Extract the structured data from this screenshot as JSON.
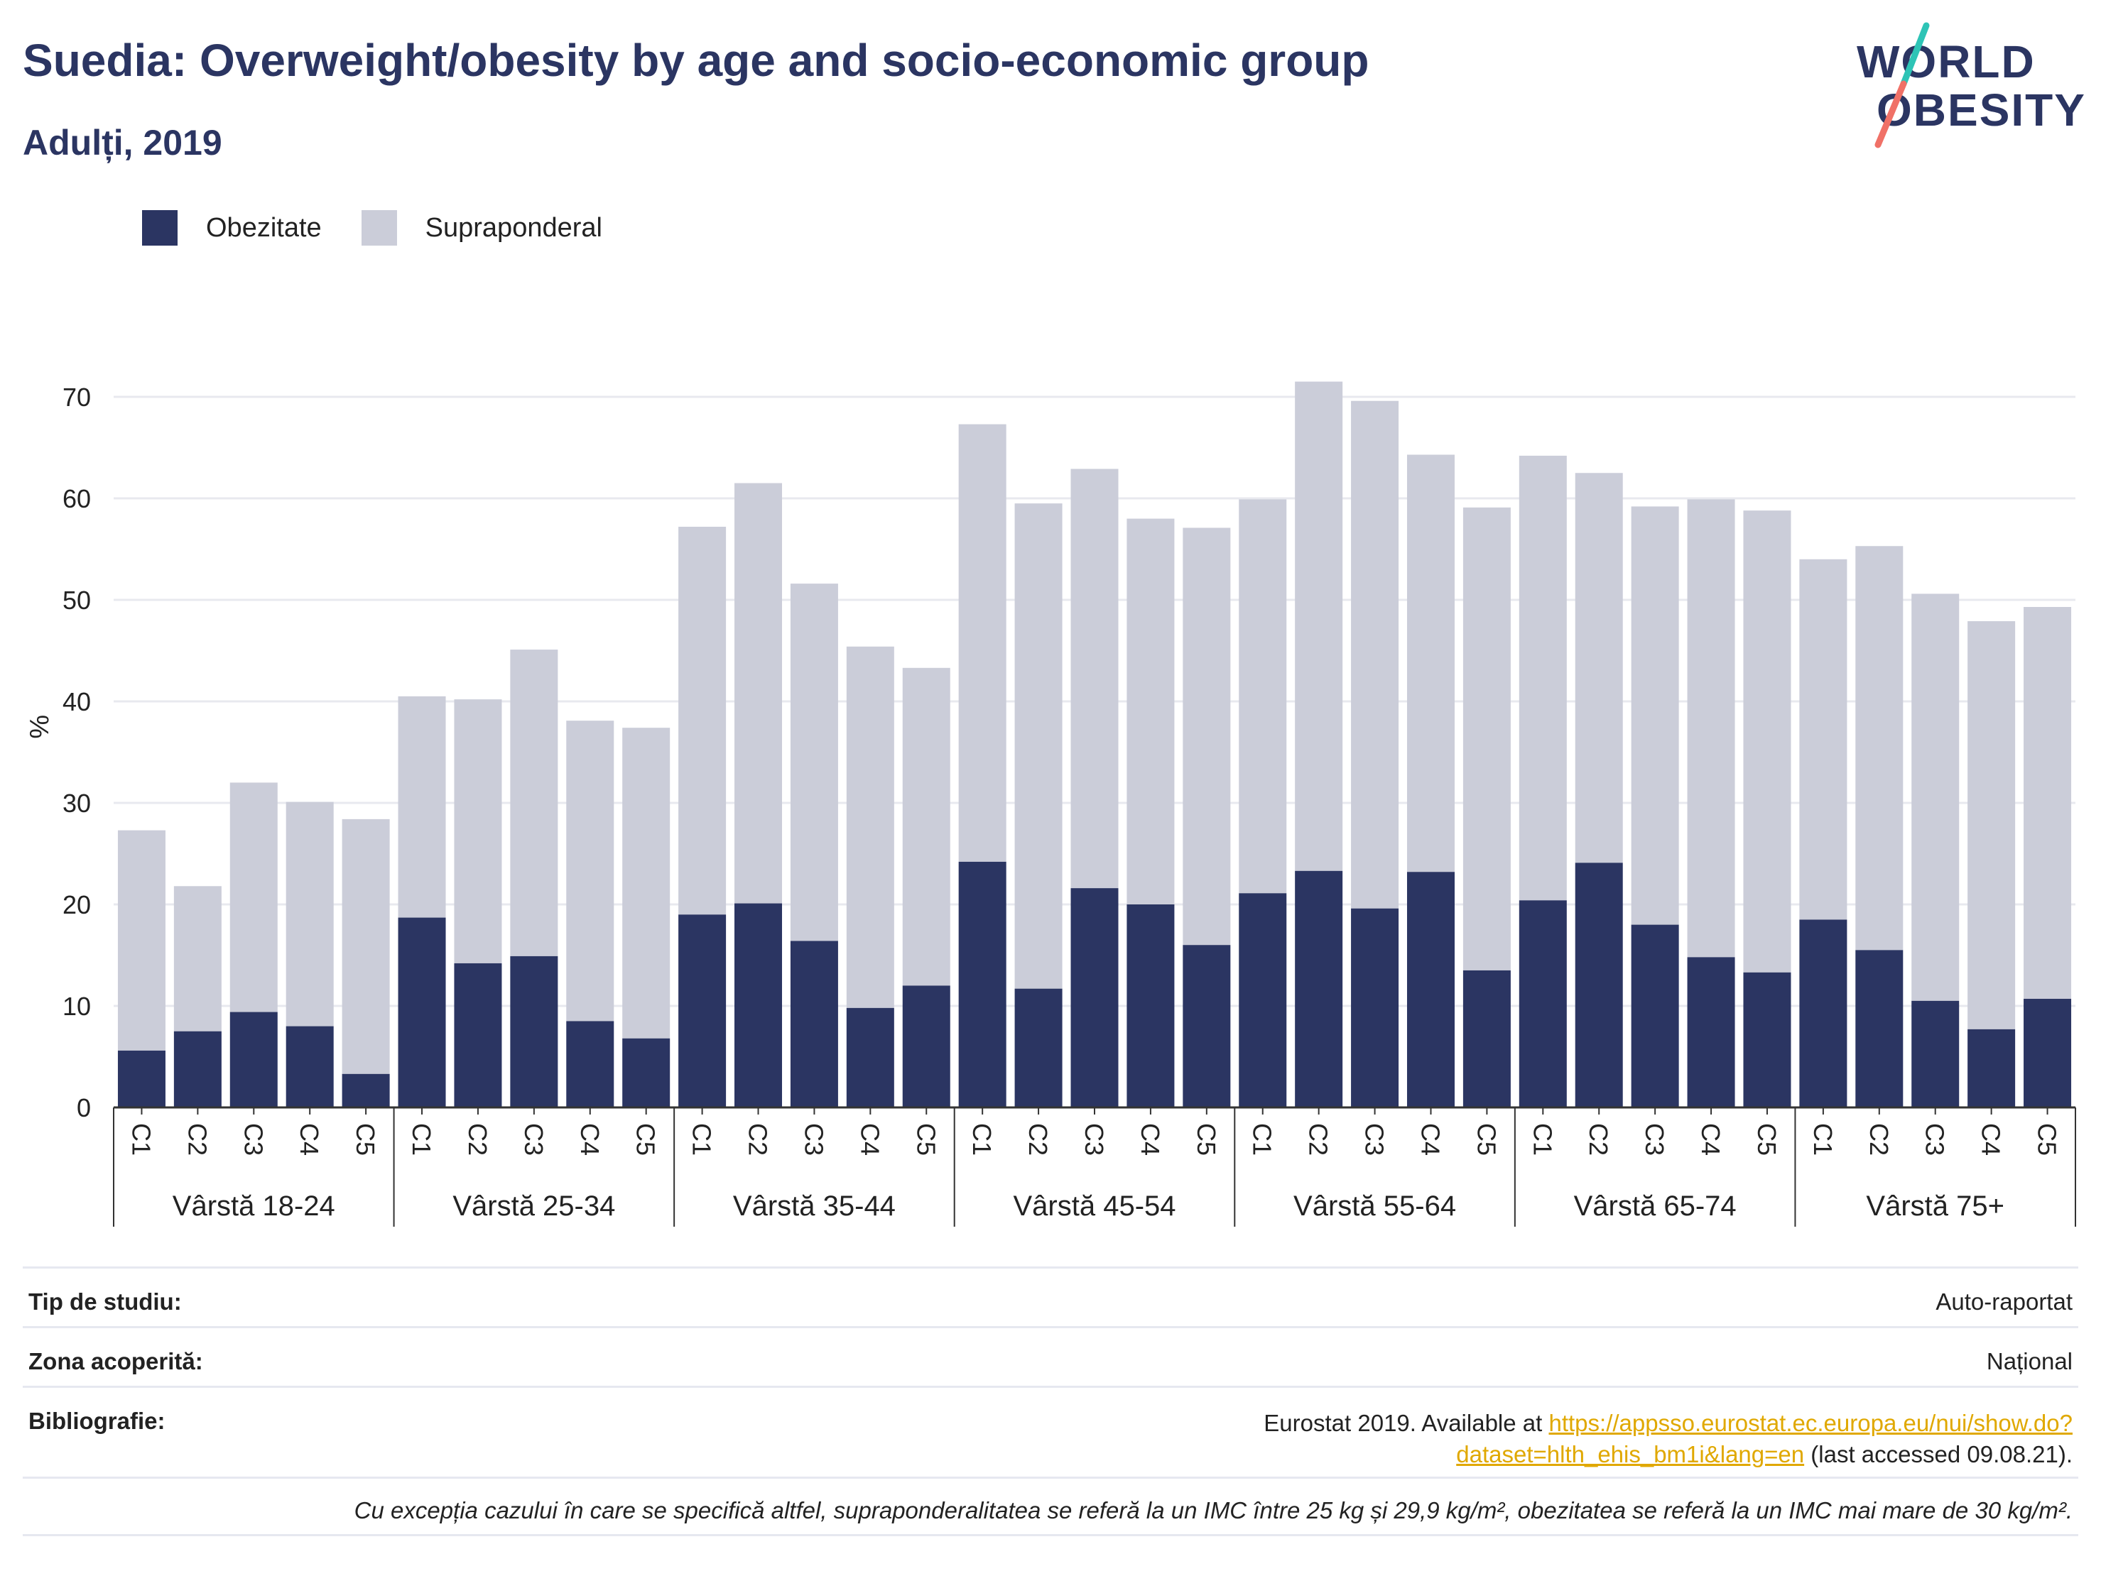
{
  "title": "Suedia: Overweight/obesity by age and socio-economic group",
  "subtitle": "Adulți, 2019",
  "logo": {
    "line1": "WORLD",
    "line2": "OBESITY",
    "colors": {
      "navy": "#2b3562",
      "teal": "#2ec4b6",
      "coral": "#f07167"
    }
  },
  "legend": [
    {
      "label": "Obezitate",
      "color": "#2b3562"
    },
    {
      "label": "Supraponderal",
      "color": "#cbcdd9"
    }
  ],
  "chart_data": {
    "type": "bar",
    "stacked": true,
    "ylabel": "%",
    "ylim": [
      0,
      75
    ],
    "yticks": [
      0,
      10,
      20,
      30,
      40,
      50,
      60,
      70
    ],
    "grid": true,
    "legend_position": "top-left",
    "groups": [
      {
        "label": "Vârstă 18-24",
        "categories": [
          "C1",
          "C2",
          "C3",
          "C4",
          "C5"
        ],
        "obesity": [
          5.6,
          7.5,
          9.4,
          8.0,
          3.3
        ],
        "total": [
          27.3,
          21.8,
          32.0,
          30.1,
          28.4
        ]
      },
      {
        "label": "Vârstă 25-34",
        "categories": [
          "C1",
          "C2",
          "C3",
          "C4",
          "C5"
        ],
        "obesity": [
          18.7,
          14.2,
          14.9,
          8.5,
          6.8
        ],
        "total": [
          40.5,
          40.2,
          45.1,
          38.1,
          37.4
        ]
      },
      {
        "label": "Vârstă 35-44",
        "categories": [
          "C1",
          "C2",
          "C3",
          "C4",
          "C5"
        ],
        "obesity": [
          19.0,
          20.1,
          16.4,
          9.8,
          12.0
        ],
        "total": [
          57.2,
          61.5,
          51.6,
          45.4,
          43.3
        ]
      },
      {
        "label": "Vârstă 45-54",
        "categories": [
          "C1",
          "C2",
          "C3",
          "C4",
          "C5"
        ],
        "obesity": [
          24.2,
          11.7,
          21.6,
          20.0,
          16.0
        ],
        "total": [
          67.3,
          59.5,
          62.9,
          58.0,
          57.1
        ]
      },
      {
        "label": "Vârstă 55-64",
        "categories": [
          "C1",
          "C2",
          "C3",
          "C4",
          "C5"
        ],
        "obesity": [
          21.1,
          23.3,
          19.6,
          23.2,
          13.5
        ],
        "total": [
          59.9,
          71.5,
          69.6,
          64.3,
          59.1
        ]
      },
      {
        "label": "Vârstă 65-74",
        "categories": [
          "C1",
          "C2",
          "C3",
          "C4",
          "C5"
        ],
        "obesity": [
          20.4,
          24.1,
          18.0,
          14.8,
          13.3
        ],
        "total": [
          64.2,
          62.5,
          59.2,
          59.9,
          58.8
        ]
      },
      {
        "label": "Vârstă 75+",
        "categories": [
          "C1",
          "C2",
          "C3",
          "C4",
          "C5"
        ],
        "obesity": [
          18.5,
          15.5,
          10.5,
          7.7,
          10.7
        ],
        "total": [
          54.0,
          55.3,
          50.6,
          47.9,
          49.3
        ]
      }
    ]
  },
  "info": {
    "study_type": {
      "label": "Tip de studiu:",
      "value": "Auto-raportat"
    },
    "coverage": {
      "label": "Zona acoperită:",
      "value": "Național"
    },
    "bibliography": {
      "label": "Bibliografie:",
      "prefix": "Eurostat 2019. Available at ",
      "link": "https://appsso.eurostat.ec.europa.eu/nui/show.do?dataset=hlth_ehis_bm1i&lang=en",
      "suffix": " (last accessed 09.08.21)."
    },
    "note": "Cu excepția cazului în care se specifică altfel, supraponderalitatea se referă la un IMC între 25 kg și 29,9 kg/m², obezitatea se referă la un IMC mai mare de 30 kg/m²."
  }
}
